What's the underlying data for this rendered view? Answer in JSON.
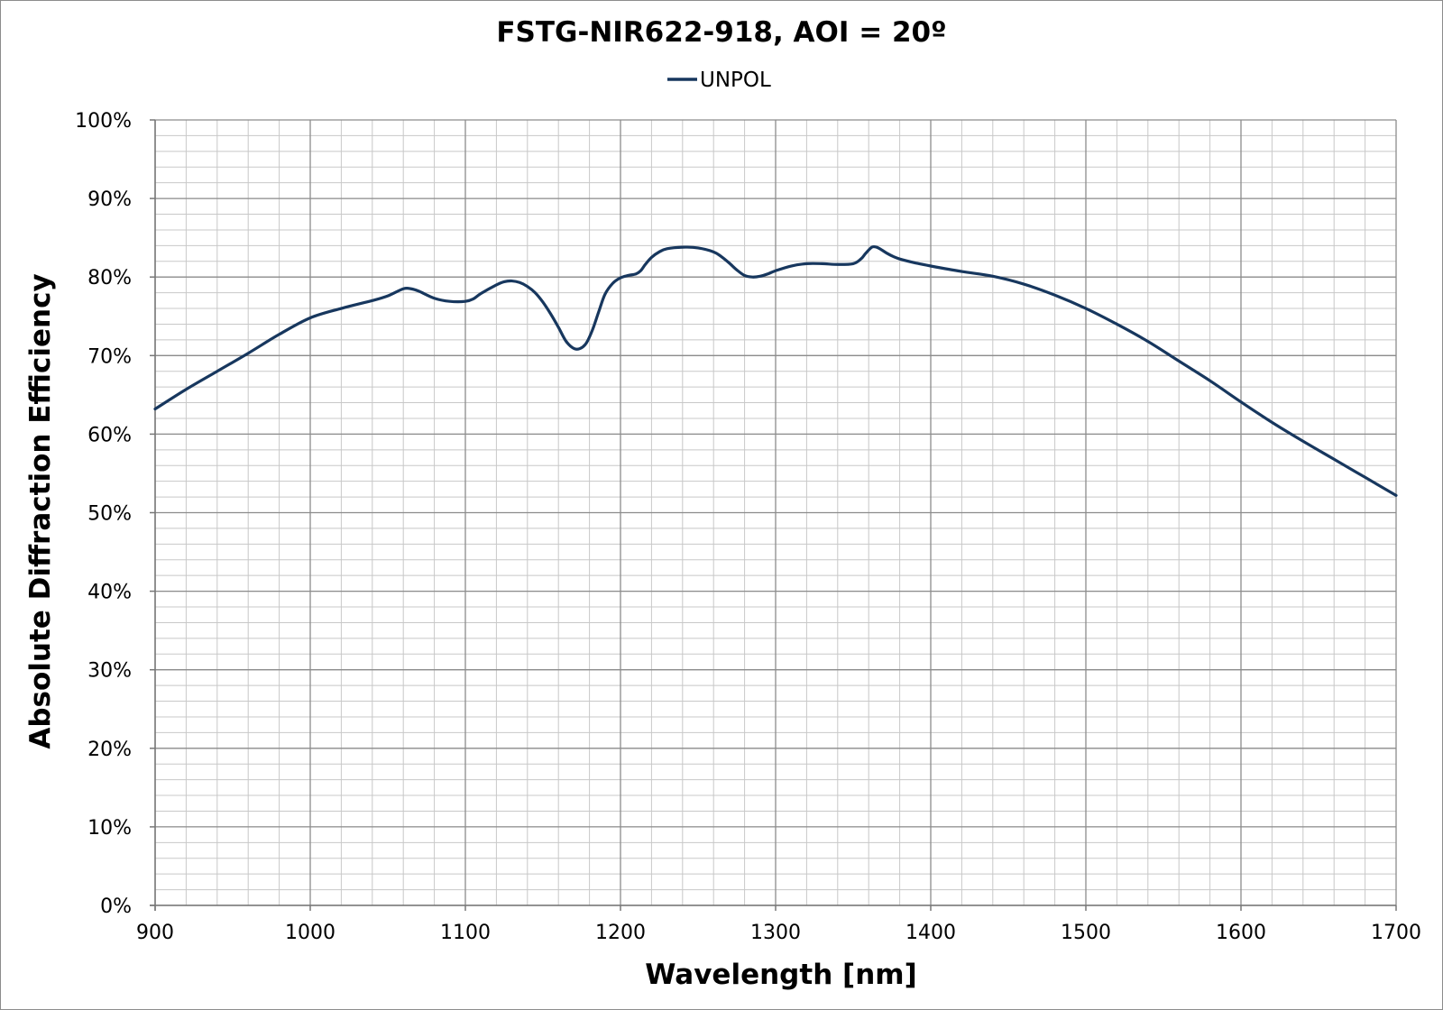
{
  "chart_data": {
    "type": "line",
    "title": "FSTG-NIR622-918, AOI = 20º",
    "xlabel": "Wavelength [nm]",
    "ylabel": "Absolute Diffraction Efficiency",
    "xlim": [
      900,
      1700
    ],
    "ylim": [
      0,
      100
    ],
    "x_ticks": [
      900,
      1000,
      1100,
      1200,
      1300,
      1400,
      1500,
      1600,
      1700
    ],
    "x_tick_labels": [
      "900",
      "1000",
      "1100",
      "1200",
      "1300",
      "1400",
      "1500",
      "1600",
      "1700"
    ],
    "y_ticks": [
      0,
      10,
      20,
      30,
      40,
      50,
      60,
      70,
      80,
      90,
      100
    ],
    "y_tick_labels": [
      "0%",
      "10%",
      "20%",
      "30%",
      "40%",
      "50%",
      "60%",
      "70%",
      "80%",
      "90%",
      "100%"
    ],
    "minor_grid_x_step": 20,
    "minor_grid_y_step": 2,
    "grid": true,
    "legend_position": "top-center",
    "series_color": "#17375E",
    "series": [
      {
        "name": "UNPOL",
        "x": [
          900,
          920,
          940,
          960,
          980,
          1000,
          1020,
          1040,
          1050,
          1060,
          1065,
          1070,
          1080,
          1090,
          1100,
          1105,
          1110,
          1120,
          1125,
          1130,
          1135,
          1140,
          1145,
          1150,
          1155,
          1160,
          1165,
          1170,
          1174,
          1178,
          1182,
          1186,
          1190,
          1195,
          1200,
          1205,
          1210,
          1213,
          1216,
          1220,
          1225,
          1230,
          1240,
          1250,
          1260,
          1265,
          1270,
          1275,
          1280,
          1285,
          1290,
          1295,
          1300,
          1310,
          1320,
          1330,
          1340,
          1350,
          1355,
          1358,
          1362,
          1365,
          1368,
          1372,
          1376,
          1380,
          1390,
          1400,
          1420,
          1440,
          1460,
          1480,
          1500,
          1520,
          1540,
          1560,
          1580,
          1600,
          1620,
          1640,
          1660,
          1680,
          1700
        ],
        "values": [
          63.2,
          65.7,
          68.0,
          70.3,
          72.7,
          74.8,
          76.0,
          77.0,
          77.6,
          78.5,
          78.5,
          78.2,
          77.3,
          76.9,
          76.9,
          77.2,
          77.9,
          79.0,
          79.4,
          79.5,
          79.3,
          78.8,
          78.0,
          76.8,
          75.3,
          73.6,
          71.8,
          70.9,
          70.9,
          71.6,
          73.3,
          75.6,
          77.8,
          79.2,
          79.9,
          80.2,
          80.4,
          80.8,
          81.6,
          82.5,
          83.2,
          83.6,
          83.8,
          83.7,
          83.2,
          82.6,
          81.8,
          80.9,
          80.2,
          80.0,
          80.1,
          80.4,
          80.8,
          81.4,
          81.7,
          81.7,
          81.6,
          81.7,
          82.3,
          83.0,
          83.8,
          83.8,
          83.5,
          83.0,
          82.6,
          82.3,
          81.8,
          81.4,
          80.7,
          80.1,
          79.1,
          77.7,
          76.0,
          74.0,
          71.8,
          69.3,
          66.8,
          64.1,
          61.5,
          59.1,
          56.8,
          54.5,
          52.2
        ]
      }
    ]
  }
}
